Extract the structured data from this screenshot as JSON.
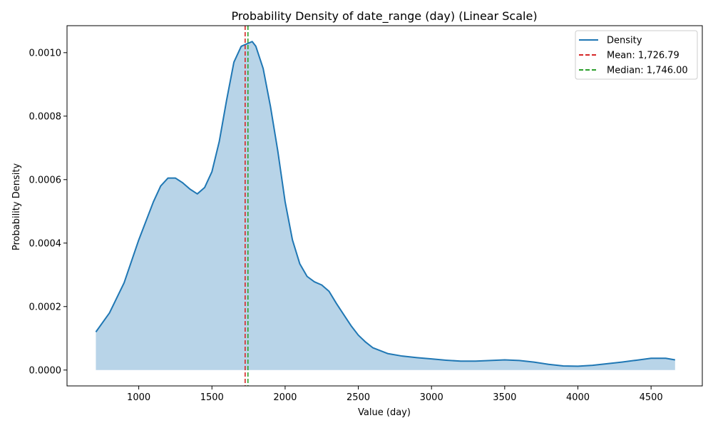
{
  "chart_data": {
    "type": "area",
    "title": "Probability Density of date_range (day) (Linear Scale)",
    "xlabel": "Value (day)",
    "ylabel": "Probability Density",
    "xlim": [
      510,
      4850
    ],
    "ylim": [
      -5e-05,
      0.001085
    ],
    "xticks": [
      1000,
      1500,
      2000,
      2500,
      3000,
      3500,
      4000,
      4500
    ],
    "xtick_labels": [
      "1000",
      "1500",
      "2000",
      "2500",
      "3000",
      "3500",
      "4000",
      "4500"
    ],
    "yticks": [
      0,
      0.0002,
      0.0004,
      0.0006,
      0.0008,
      0.001
    ],
    "ytick_labels": [
      "0.0000",
      "0.0002",
      "0.0004",
      "0.0006",
      "0.0008",
      "0.0010"
    ],
    "grid": false,
    "legend_position": "top-right",
    "colors": {
      "density_line": "#1f77b4",
      "density_fill": "#b8d4e8",
      "mean_line": "#d62728",
      "median_line": "#2ca02c"
    },
    "series": [
      {
        "name": "Density",
        "x": [
          707,
          800,
          900,
          1000,
          1100,
          1150,
          1200,
          1250,
          1300,
          1350,
          1400,
          1450,
          1500,
          1550,
          1600,
          1650,
          1700,
          1750,
          1775,
          1800,
          1850,
          1900,
          1950,
          2000,
          2050,
          2100,
          2150,
          2200,
          2250,
          2300,
          2350,
          2400,
          2450,
          2500,
          2550,
          2600,
          2700,
          2800,
          2900,
          3000,
          3100,
          3200,
          3300,
          3400,
          3500,
          3600,
          3700,
          3800,
          3900,
          4000,
          4100,
          4200,
          4300,
          4400,
          4500,
          4600,
          4664
        ],
        "y": [
          0.00012,
          0.00018,
          0.000275,
          0.00041,
          0.00053,
          0.00058,
          0.000605,
          0.000605,
          0.00059,
          0.00057,
          0.000555,
          0.000575,
          0.000625,
          0.00072,
          0.00085,
          0.00097,
          0.00102,
          0.00103,
          0.001035,
          0.00102,
          0.00095,
          0.00083,
          0.00069,
          0.00053,
          0.00041,
          0.000335,
          0.000295,
          0.000278,
          0.000268,
          0.000248,
          0.00021,
          0.000175,
          0.00014,
          0.00011,
          8.8e-05,
          7e-05,
          5.2e-05,
          4.4e-05,
          3.9e-05,
          3.5e-05,
          3.1e-05,
          2.8e-05,
          2.8e-05,
          3e-05,
          3.2e-05,
          3e-05,
          2.5e-05,
          1.8e-05,
          1.3e-05,
          1.2e-05,
          1.5e-05,
          2e-05,
          2.5e-05,
          3.1e-05,
          3.7e-05,
          3.7e-05,
          3.2e-05
        ]
      }
    ],
    "vlines": [
      {
        "name": "Mean: 1,726.79",
        "x": 1726.79,
        "style": "dashed"
      },
      {
        "name": "Median: 1,746.00",
        "x": 1746.0,
        "style": "dashed"
      }
    ]
  }
}
